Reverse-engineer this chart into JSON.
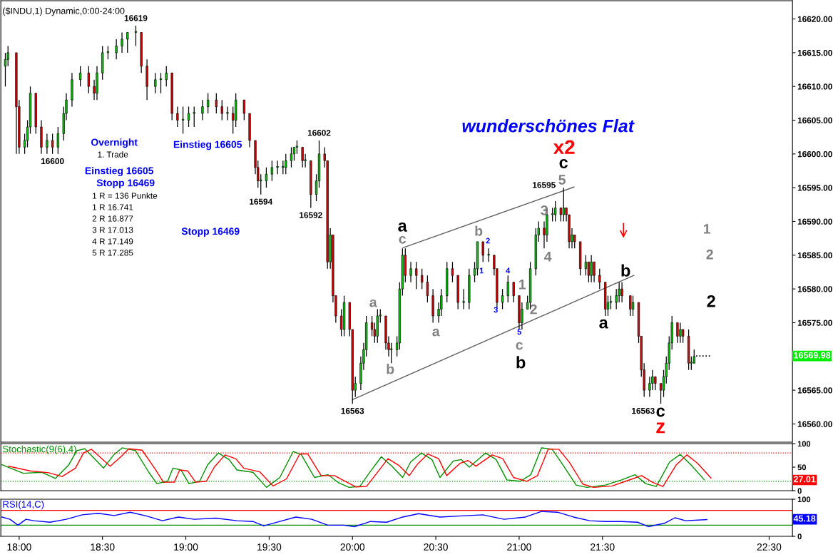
{
  "chart_data": [
    {
      "type": "candlestick",
      "title": "($INDU,1) Dynamic,0:00-24:00",
      "x": [
        17.917,
        17.933,
        17.983,
        18.0,
        18.033,
        18.05,
        18.067,
        18.1,
        18.133,
        18.167,
        18.2,
        18.233,
        18.267,
        18.283,
        18.317,
        18.367,
        18.417,
        18.45,
        18.467,
        18.5,
        18.533,
        18.583,
        18.617,
        18.65,
        18.7,
        18.733,
        18.767,
        18.817,
        18.85,
        18.883,
        18.917,
        18.95,
        18.983,
        19.017,
        19.05,
        19.1,
        19.133,
        19.183,
        19.217,
        19.25,
        19.283,
        19.3,
        19.35,
        19.383,
        19.417,
        19.433,
        19.45,
        19.483,
        19.517,
        19.55,
        19.583,
        19.6,
        19.633,
        19.65,
        19.667,
        19.7,
        19.717,
        19.75,
        19.783,
        19.8,
        19.833,
        19.85,
        19.867,
        19.883,
        19.9,
        19.933,
        19.95,
        19.983,
        20.0,
        20.017,
        20.05,
        20.067,
        20.083,
        20.117,
        20.133,
        20.15,
        20.167,
        20.2,
        20.217,
        20.233,
        20.267,
        20.283,
        20.3,
        20.317,
        20.35,
        20.383,
        20.417,
        20.45,
        20.483,
        20.517,
        20.533,
        20.567,
        20.6,
        20.633,
        20.667,
        20.7,
        20.733,
        20.75,
        20.783,
        20.817,
        20.85,
        20.867,
        20.9,
        20.933,
        20.967,
        21.0,
        21.017,
        21.05,
        21.067,
        21.1,
        21.117,
        21.15,
        21.167,
        21.2,
        21.217,
        21.25,
        21.267,
        21.283,
        21.3,
        21.317,
        21.333,
        21.367,
        21.4,
        21.417,
        21.433,
        21.45,
        21.483,
        21.517,
        21.533,
        21.55,
        21.583,
        21.6,
        21.617,
        21.667,
        21.683,
        21.717,
        21.733,
        21.75,
        21.783,
        21.8,
        21.817,
        21.85,
        21.867,
        21.883,
        21.9,
        21.917,
        21.95,
        21.967,
        21.983,
        22.017,
        22.033,
        22.05
      ],
      "ohlc": [
        [
          16613,
          16615,
          16610,
          16614
        ],
        [
          16614,
          16616,
          16613,
          16615
        ],
        [
          16615,
          16615,
          16600,
          16607
        ],
        [
          16607,
          16608,
          16600,
          16601
        ],
        [
          16601,
          16603,
          16600,
          16602
        ],
        [
          16602,
          16605,
          16601,
          16604
        ],
        [
          16604,
          16610,
          16603,
          16609
        ],
        [
          16609,
          16609,
          16603,
          16604
        ],
        [
          16604,
          16605,
          16600,
          16601
        ],
        [
          16601,
          16603,
          16600,
          16602
        ],
        [
          16602,
          16603,
          16600,
          16601
        ],
        [
          16601,
          16604,
          16600,
          16603
        ],
        [
          16603,
          16607,
          16602,
          16606
        ],
        [
          16606,
          16609,
          16605,
          16608
        ],
        [
          16608,
          16612,
          16607,
          16611
        ],
        [
          16611,
          16613,
          16610,
          16612
        ],
        [
          16612,
          16613,
          16609,
          16610
        ],
        [
          16610,
          16611,
          16608,
          16609
        ],
        [
          16609,
          16613,
          16608,
          16612
        ],
        [
          16612,
          16616,
          16611,
          16615
        ],
        [
          16615,
          16616,
          16614,
          16615
        ],
        [
          16615,
          16617,
          16614,
          16616
        ],
        [
          16616,
          16618,
          16615,
          16617
        ],
        [
          16617,
          16618,
          16615,
          16618
        ],
        [
          16618,
          16619,
          16616,
          16618
        ],
        [
          16618,
          16618,
          16612,
          16613
        ],
        [
          16613,
          16614,
          16608,
          16610
        ],
        [
          16610,
          16612,
          16609,
          16611
        ],
        [
          16611,
          16612,
          16609,
          16611
        ],
        [
          16611,
          16613,
          16610,
          16612
        ],
        [
          16612,
          16612,
          16605,
          16606
        ],
        [
          16606,
          16607,
          16604,
          16605
        ],
        [
          16605,
          16607,
          16603,
          16605
        ],
        [
          16605,
          16607,
          16604,
          16606
        ],
        [
          16606,
          16607,
          16604,
          16606
        ],
        [
          16606,
          16608,
          16605,
          16607
        ],
        [
          16607,
          16609,
          16606,
          16608
        ],
        [
          16608,
          16609,
          16606,
          16607
        ],
        [
          16607,
          16608,
          16605,
          16606
        ],
        [
          16606,
          16607,
          16605,
          16606
        ],
        [
          16606,
          16607,
          16603,
          16605
        ],
        [
          16605,
          16609,
          16604,
          16608
        ],
        [
          16608,
          16608,
          16605,
          16606
        ],
        [
          16606,
          16606,
          16601,
          16602
        ],
        [
          16602,
          16602,
          16597,
          16598
        ],
        [
          16598,
          16599,
          16595,
          16596
        ],
        [
          16596,
          16597,
          16594,
          16596
        ],
        [
          16596,
          16598,
          16595,
          16597
        ],
        [
          16597,
          16599,
          16596,
          16598
        ],
        [
          16598,
          16599,
          16597,
          16598
        ],
        [
          16598,
          16599,
          16597,
          16598
        ],
        [
          16598,
          16600,
          16597,
          16599
        ],
        [
          16599,
          16601,
          16598,
          16600
        ],
        [
          16600,
          16601,
          16599,
          16601
        ],
        [
          16601,
          16602,
          16600,
          16601
        ],
        [
          16601,
          16601,
          16598,
          16599
        ],
        [
          16599,
          16600,
          16598,
          16599
        ],
        [
          16599,
          16599,
          16592,
          16594
        ],
        [
          16594,
          16597,
          16593,
          16596
        ],
        [
          16596,
          16602,
          16595,
          16600
        ],
        [
          16600,
          16601,
          16598,
          16599
        ],
        [
          16599,
          16599,
          16583,
          16584
        ],
        [
          16584,
          16589,
          16583,
          16588
        ],
        [
          16588,
          16588,
          16578,
          16579
        ],
        [
          16579,
          16579,
          16575,
          16576
        ],
        [
          16576,
          16577,
          16573,
          16574
        ],
        [
          16574,
          16579,
          16573,
          16578
        ],
        [
          16578,
          16578,
          16573,
          16574
        ],
        [
          16574,
          16574,
          16563,
          16565
        ],
        [
          16565,
          16567,
          16564,
          16566
        ],
        [
          16566,
          16570,
          16565,
          16569
        ],
        [
          16569,
          16572,
          16568,
          16571
        ],
        [
          16571,
          16576,
          16570,
          16575
        ],
        [
          16575,
          16576,
          16573,
          16574
        ],
        [
          16574,
          16575,
          16572,
          16573
        ],
        [
          16573,
          16577,
          16572,
          16576
        ],
        [
          16576,
          16577,
          16575,
          16576
        ],
        [
          16576,
          16576,
          16571,
          16572
        ],
        [
          16572,
          16573,
          16570,
          16571
        ],
        [
          16571,
          16572,
          16569,
          16571
        ],
        [
          16571,
          16573,
          16570,
          16572
        ],
        [
          16572,
          16581,
          16571,
          16580
        ],
        [
          16580,
          16586,
          16579,
          16585
        ],
        [
          16585,
          16586,
          16581,
          16582
        ],
        [
          16582,
          16584,
          16581,
          16583
        ],
        [
          16583,
          16584,
          16580,
          16582
        ],
        [
          16582,
          16583,
          16580,
          16581
        ],
        [
          16581,
          16582,
          16578,
          16579
        ],
        [
          16579,
          16580,
          16575,
          16576
        ],
        [
          16576,
          16578,
          16575,
          16577
        ],
        [
          16577,
          16580,
          16576,
          16579
        ],
        [
          16579,
          16584,
          16578,
          16583
        ],
        [
          16583,
          16584,
          16581,
          16582
        ],
        [
          16582,
          16582,
          16577,
          16578
        ],
        [
          16578,
          16580,
          16577,
          16578
        ],
        [
          16578,
          16583,
          16577,
          16582
        ],
        [
          16582,
          16584,
          16581,
          16583
        ],
        [
          16583,
          16587,
          16582,
          16587
        ],
        [
          16587,
          16587,
          16584,
          16585
        ],
        [
          16585,
          16586,
          16584,
          16585
        ],
        [
          16585,
          16585,
          16582,
          16583
        ],
        [
          16583,
          16583,
          16577,
          16578
        ],
        [
          16578,
          16580,
          16577,
          16579
        ],
        [
          16579,
          16582,
          16578,
          16581
        ],
        [
          16581,
          16581,
          16578,
          16579
        ],
        [
          16579,
          16579,
          16574,
          16575
        ],
        [
          16575,
          16578,
          16574,
          16577
        ],
        [
          16577,
          16579,
          16577,
          16578
        ],
        [
          16578,
          16584,
          16577,
          16583
        ],
        [
          16583,
          16589,
          16582,
          16588
        ],
        [
          16588,
          16590,
          16587,
          16589
        ],
        [
          16589,
          16590,
          16586,
          16588
        ],
        [
          16588,
          16592,
          16587,
          16591
        ],
        [
          16591,
          16592,
          16590,
          16591
        ],
        [
          16591,
          16593,
          16590,
          16592
        ],
        [
          16592,
          16592,
          16590,
          16591
        ],
        [
          16591,
          16595,
          16590,
          16592
        ],
        [
          16592,
          16592,
          16590,
          16591
        ],
        [
          16591,
          16591,
          16586,
          16587
        ],
        [
          16587,
          16589,
          16586,
          16588
        ],
        [
          16588,
          16588,
          16586,
          16587
        ],
        [
          16587,
          16587,
          16582,
          16583
        ],
        [
          16583,
          16585,
          16582,
          16584
        ],
        [
          16584,
          16584,
          16581,
          16582
        ],
        [
          16582,
          16585,
          16581,
          16584
        ],
        [
          16584,
          16584,
          16581,
          16582
        ],
        [
          16582,
          16583,
          16580,
          16581
        ],
        [
          16581,
          16581,
          16576,
          16577
        ],
        [
          16577,
          16579,
          16576,
          16578
        ],
        [
          16578,
          16579,
          16577,
          16578
        ],
        [
          16578,
          16580,
          16577,
          16579
        ],
        [
          16579,
          16581,
          16578,
          16580
        ],
        [
          16580,
          16581,
          16578,
          16579
        ],
        [
          16579,
          16579,
          16576,
          16577
        ],
        [
          16577,
          16579,
          16576,
          16578
        ],
        [
          16578,
          16578,
          16572,
          16573
        ],
        [
          16573,
          16573,
          16567,
          16568
        ],
        [
          16568,
          16569,
          16564,
          16565
        ],
        [
          16565,
          16567,
          16564,
          16566
        ],
        [
          16566,
          16568,
          16565,
          16567
        ],
        [
          16567,
          16567,
          16565,
          16566
        ],
        [
          16566,
          16566,
          16563,
          16565
        ],
        [
          16565,
          16568,
          16564,
          16567
        ],
        [
          16567,
          16570,
          16566,
          16569
        ],
        [
          16569,
          16573,
          16568,
          16572
        ],
        [
          16572,
          16576,
          16571,
          16575
        ],
        [
          16575,
          16575,
          16572,
          16573
        ],
        [
          16573,
          16575,
          16572,
          16574
        ],
        [
          16574,
          16574,
          16572,
          16573
        ],
        [
          16573,
          16574,
          16568,
          16569
        ],
        [
          16569,
          16570,
          16568,
          16569
        ],
        [
          16569,
          16571,
          16569,
          16570
        ]
      ],
      "series": [
        {
          "type": "line",
          "color": "#606060",
          "x": [
            20.303,
            21.329
          ],
          "values": [
            16586.1,
            16595.1
          ]
        },
        {
          "type": "line",
          "color": "#606060",
          "x": [
            20.0,
            21.688
          ],
          "values": [
            16563.6,
            16582.0
          ]
        }
      ],
      "xlim": [
        17.89,
        22.64
      ],
      "ylim": [
        16557.3,
        16622.7
      ],
      "yticks": [
        {
          "value": 16560,
          "label": "16560.00"
        },
        {
          "value": 16565,
          "label": "16565.00"
        },
        {
          "value": 16575,
          "label": "16575.00"
        },
        {
          "value": 16580,
          "label": "16580.00"
        },
        {
          "value": 16585,
          "label": "16585.00"
        },
        {
          "value": 16590,
          "label": "16590.00"
        },
        {
          "value": 16595,
          "label": "16595.00"
        },
        {
          "value": 16600,
          "label": "16600.00"
        },
        {
          "value": 16605,
          "label": "16605.00"
        },
        {
          "value": 16610,
          "label": "16610.00"
        },
        {
          "value": 16615,
          "label": "16615.00"
        },
        {
          "value": 16620,
          "label": "16620.00"
        }
      ],
      "tick_labels": "y",
      "annotations": [
        {
          "text": "16619",
          "x": 18.7,
          "y": 16619
        },
        {
          "text": "16600",
          "x": 18.2,
          "y": 16600
        },
        {
          "text": "16594",
          "x": 19.45,
          "y": 16594
        },
        {
          "text": "16602",
          "x": 19.8,
          "y": 16602
        },
        {
          "text": "16592",
          "x": 19.75,
          "y": 16592
        },
        {
          "text": "16563",
          "x": 20.0,
          "y": 16563
        },
        {
          "text": "16595",
          "x": 21.267,
          "y": 16595
        },
        {
          "text": "16563",
          "x": 21.85,
          "y": 16563
        },
        "a",
        "c",
        "a",
        "b",
        "a",
        "b",
        "2",
        "1",
        "3",
        "4",
        "1",
        "2",
        "5",
        "c",
        "b",
        "3",
        "4",
        "5",
        "c",
        "x2",
        "b",
        "a",
        "c",
        "z",
        "1",
        "2",
        "2",
        "Overnight",
        "1. Trade",
        "Einstieg 16605",
        "Stopp 16469",
        "1 R = 136 Punkte",
        "1 R 16.741",
        "2 R 16.877",
        "3 R 17.013",
        "4 R 17.149",
        "5 R 17.285",
        "Einstieg 16605",
        "Stopp 16469",
        "wunderschönes Flat",
        "16569.98"
      ]
    },
    {
      "type": "line",
      "title": "Stochastic(9(6),4)",
      "series": [
        {
          "color": "#009000",
          "x": [
            17.897,
            18.025,
            18.137,
            18.218,
            18.298,
            18.346,
            18.394,
            18.506,
            18.57,
            18.618,
            18.698,
            18.778,
            18.826,
            18.891,
            18.923,
            18.971,
            19.019,
            19.083,
            19.131,
            19.195,
            19.259,
            19.307,
            19.403,
            19.484,
            19.564,
            19.644,
            19.692,
            19.772,
            19.852,
            19.916,
            19.98,
            20.044,
            20.108,
            20.173,
            20.237,
            20.301,
            20.349,
            20.413,
            20.477,
            20.525,
            20.605,
            20.653,
            20.701,
            20.798,
            20.862,
            20.926,
            21.006,
            21.07,
            21.134,
            21.198,
            21.262,
            21.342,
            21.406,
            21.518,
            21.615,
            21.695,
            21.759,
            21.823,
            21.903,
            21.967,
            22.031,
            22.111
          ],
          "values": [
            55,
            37,
            39,
            26,
            55,
            85,
            89,
            48,
            77,
            91,
            85,
            39,
            15,
            20,
            48,
            44,
            15,
            20,
            55,
            80,
            66,
            44,
            39,
            7,
            28,
            83,
            77,
            28,
            34,
            17,
            7,
            9,
            41,
            72,
            52,
            28,
            61,
            80,
            66,
            28,
            63,
            66,
            50,
            80,
            66,
            23,
            20,
            34,
            91,
            88,
            55,
            12,
            7,
            12,
            23,
            34,
            15,
            9,
            61,
            77,
            55,
            23
          ]
        },
        {
          "color": "#ff0000",
          "x": [
            17.937,
            18.065,
            18.177,
            18.258,
            18.338,
            18.386,
            18.434,
            18.546,
            18.61,
            18.658,
            18.738,
            18.818,
            18.866,
            18.931,
            18.963,
            19.011,
            19.059,
            19.123,
            19.171,
            19.235,
            19.299,
            19.347,
            19.443,
            19.524,
            19.604,
            19.684,
            19.732,
            19.812,
            19.892,
            19.956,
            20.02,
            20.084,
            20.148,
            20.213,
            20.277,
            20.341,
            20.389,
            20.453,
            20.517,
            20.565,
            20.645,
            20.693,
            20.741,
            20.838,
            20.902,
            20.966,
            21.046,
            21.11,
            21.174,
            21.238,
            21.302,
            21.382,
            21.446,
            21.558,
            21.655,
            21.735,
            21.799,
            21.863,
            21.943,
            22.007,
            22.071,
            22.151
          ],
          "values": [
            52,
            42,
            38,
            30,
            48,
            80,
            88,
            52,
            72,
            89,
            86,
            45,
            18,
            18,
            44,
            42,
            18,
            20,
            50,
            76,
            68,
            48,
            40,
            10,
            25,
            78,
            78,
            32,
            32,
            20,
            8,
            9,
            38,
            68,
            54,
            32,
            56,
            78,
            68,
            32,
            58,
            64,
            52,
            76,
            68,
            28,
            20,
            32,
            88,
            88,
            60,
            14,
            7,
            10,
            22,
            32,
            18,
            9,
            55,
            76,
            58,
            27
          ]
        }
      ],
      "xlim": [
        17.89,
        22.64
      ],
      "ylim": [
        0,
        100
      ],
      "yticks": [
        0,
        50,
        100
      ],
      "tick_labels": "y",
      "ref_lines": [
        {
          "axis": "y",
          "value": 80,
          "color": "#ff0000",
          "line_style": "dotted"
        },
        {
          "axis": "y",
          "value": 20,
          "color": "#009000",
          "line_style": "dotted"
        }
      ],
      "annotations": [
        "27.01"
      ]
    },
    {
      "type": "line",
      "title": "RSI(14,C)",
      "series": [
        {
          "color": "#0000ff",
          "x": [
            17.897,
            17.945,
            17.993,
            18.041,
            18.089,
            18.185,
            18.282,
            18.378,
            18.474,
            18.57,
            18.666,
            18.762,
            18.859,
            18.955,
            19.051,
            19.179,
            19.307,
            19.403,
            19.467,
            19.564,
            19.66,
            19.756,
            19.852,
            19.948,
            20.012,
            20.108,
            20.205,
            20.301,
            20.397,
            20.525,
            20.653,
            20.782,
            20.91,
            21.038,
            21.134,
            21.23,
            21.326,
            21.423,
            21.519,
            21.615,
            21.711,
            21.775,
            21.871,
            21.935,
            21.999,
            22.127
          ],
          "values": [
            52,
            46,
            30,
            46,
            42,
            38,
            46,
            58,
            62,
            56,
            65,
            55,
            42,
            52,
            46,
            49,
            42,
            40,
            28,
            40,
            52,
            46,
            30,
            30,
            26,
            40,
            38,
            52,
            61,
            52,
            55,
            58,
            46,
            52,
            67,
            65,
            52,
            42,
            40,
            40,
            38,
            26,
            35,
            50,
            42,
            45
          ]
        }
      ],
      "xlim": [
        17.89,
        22.64
      ],
      "ylim": [
        0,
        100
      ],
      "yticks": [
        0,
        100
      ],
      "xticks": [
        {
          "value": 18,
          "label": "18:00"
        },
        {
          "value": 18.5,
          "label": "18:30"
        },
        {
          "value": 19,
          "label": "19:00"
        },
        {
          "value": 19.5,
          "label": "19:30"
        },
        {
          "value": 20,
          "label": "20:00"
        },
        {
          "value": 20.5,
          "label": "20:30"
        },
        {
          "value": 21,
          "label": "21:00"
        },
        {
          "value": 21.5,
          "label": "21:30"
        },
        {
          "value": 22.5,
          "label": "22:30"
        }
      ],
      "ref_lines": [
        {
          "axis": "y",
          "value": 70,
          "color": "#ff0000",
          "line_style": "solid"
        },
        {
          "axis": "y",
          "value": 30,
          "color": "#009000",
          "line_style": "solid"
        }
      ],
      "annotations": [
        "45.18"
      ]
    }
  ]
}
